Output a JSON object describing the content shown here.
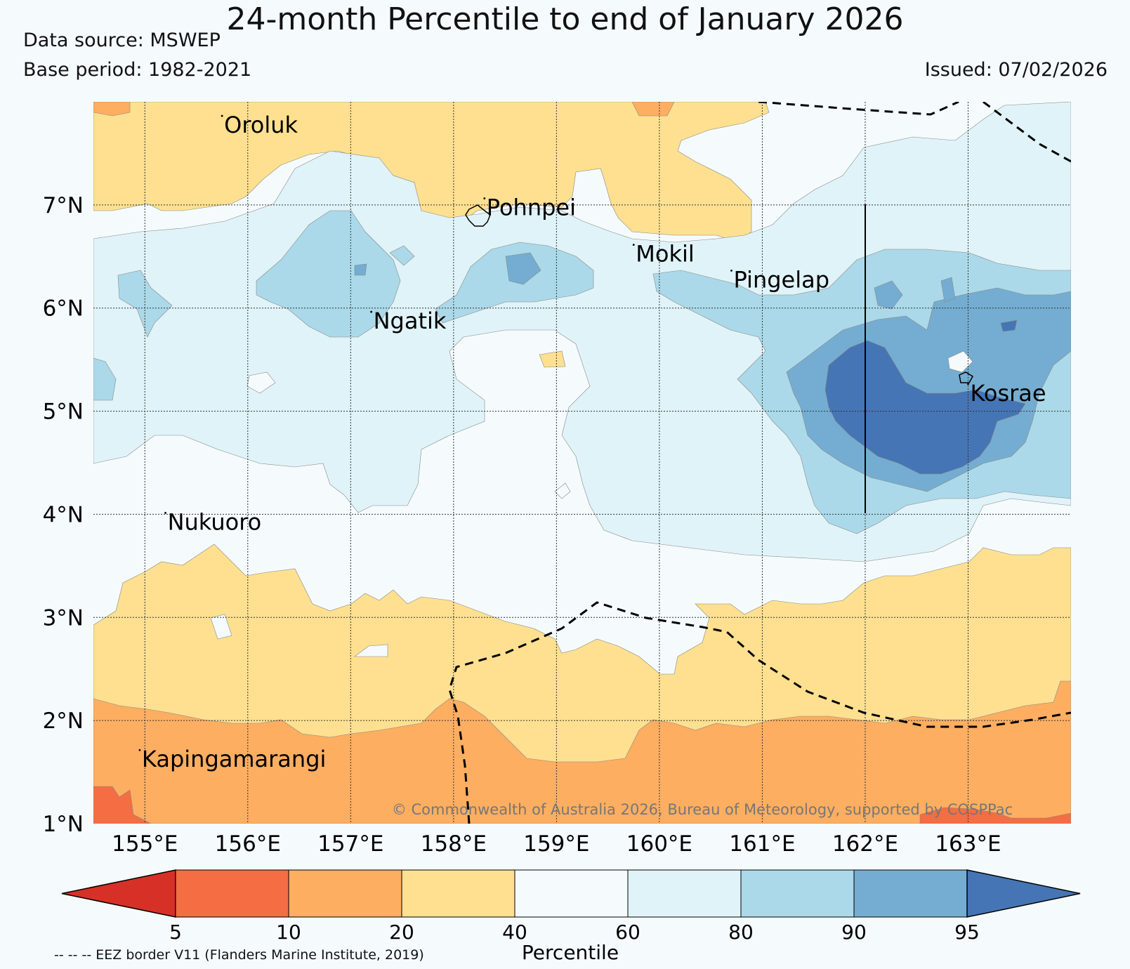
{
  "title": "24-month Percentile to end of January 2026",
  "data_source": "Data source: MSWEP",
  "base_period": "Base period: 1982-2021",
  "issued": "Issued: 07/02/2026",
  "copyright": "© Commonwealth of Australia 2026, Bureau of Meteorology, supported by COSPPac",
  "eez_note": "-- -- -- EEZ border V11 (Flanders Marine Institute, 2019)",
  "colorbar": {
    "label": "Percentile",
    "ticks": [
      "5",
      "10",
      "20",
      "40",
      "60",
      "80",
      "90",
      "95"
    ],
    "colors": [
      "#d73027",
      "#f46d43",
      "#fdae61",
      "#fee090",
      "#f5fbfd",
      "#e0f3f8",
      "#abd9e9",
      "#74add1",
      "#4575b4"
    ]
  },
  "axes": {
    "lon_labels": [
      "155°E",
      "156°E",
      "157°E",
      "158°E",
      "159°E",
      "160°E",
      "161°E",
      "162°E",
      "163°E"
    ],
    "lat_labels": [
      "7°N",
      "6°N",
      "5°N",
      "4°N",
      "3°N",
      "2°N",
      "1°N"
    ],
    "lon_range": [
      154.5,
      164.0
    ],
    "lat_range": [
      1.0,
      8.0
    ]
  },
  "places": [
    {
      "name": "Oroluk",
      "lon": 155.75,
      "lat": 7.7
    },
    {
      "name": "Pohnpei",
      "lon": 158.3,
      "lat": 6.9
    },
    {
      "name": "Mokil",
      "lon": 159.75,
      "lat": 6.45
    },
    {
      "name": "Pingelap",
      "lon": 160.7,
      "lat": 6.2
    },
    {
      "name": "Ngatik",
      "lon": 157.2,
      "lat": 5.8
    },
    {
      "name": "Kosrae",
      "lon": 163.0,
      "lat": 5.1
    },
    {
      "name": "Nukuoro",
      "lon": 155.2,
      "lat": 3.85
    },
    {
      "name": "Kapingamarangi",
      "lon": 154.95,
      "lat": 1.55
    }
  ]
}
